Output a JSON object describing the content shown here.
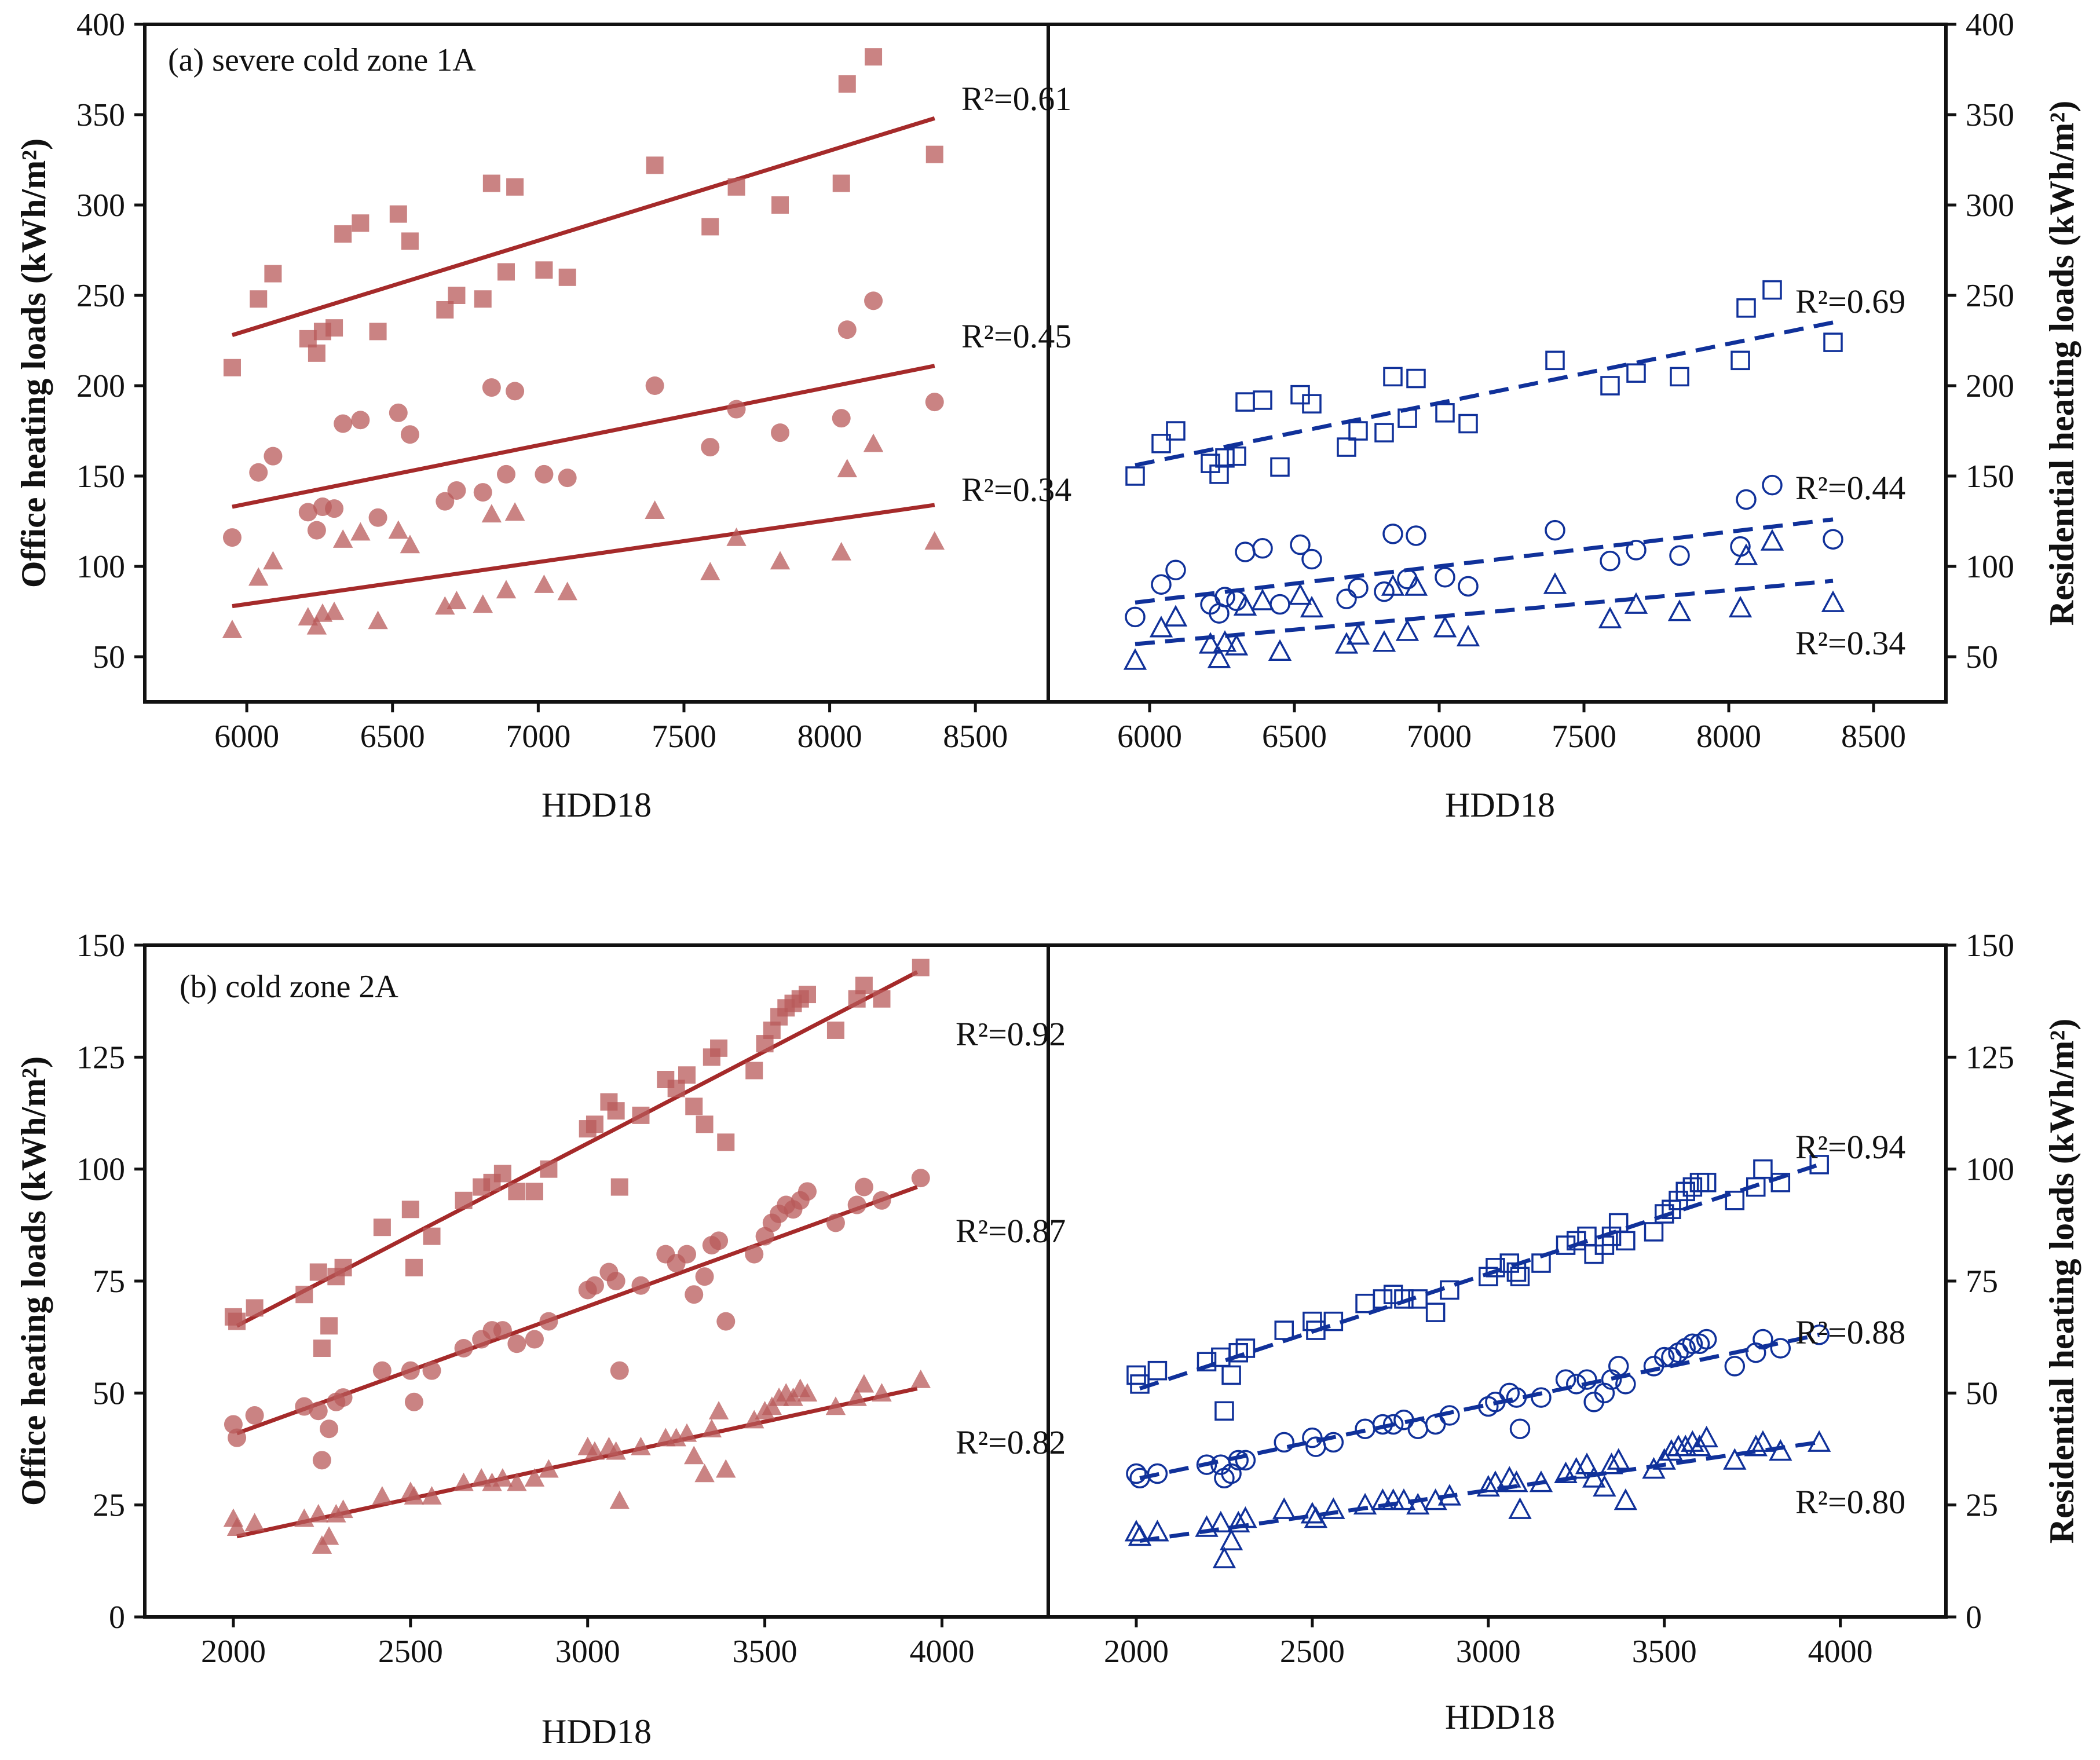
{
  "colors": {
    "office": "#a52a2a",
    "office_marker": "#b85a5a",
    "residential": "#10319a",
    "axis": "#111111"
  },
  "chart_data": [
    {
      "type": "scatter",
      "title": "(a) severe cold zone 1A",
      "xlabel": "HDD18",
      "left_ylabel": "Office heating loads (kWh/m²)",
      "right_ylabel": "Residential heating loads (kWh/m²)",
      "xlim": [
        5650,
        8750
      ],
      "ylim": [
        25,
        400
      ],
      "xticks": [
        6000,
        6500,
        7000,
        7500,
        8000,
        8500
      ],
      "yticks": [
        50,
        100,
        150,
        200,
        250,
        300,
        350,
        400
      ],
      "legend": "none",
      "x": [
        5950,
        6040,
        6090,
        6210,
        6240,
        6260,
        6300,
        6330,
        6390,
        6450,
        6520,
        6560,
        6680,
        6720,
        6810,
        6840,
        6890,
        6920,
        7020,
        7100,
        7400,
        7590,
        7680,
        7830,
        8040,
        8060,
        8150,
        8360
      ],
      "office_series": [
        {
          "name": "squares",
          "marker": "square",
          "fit_r2": "R²=0.61",
          "fit": [
            [
              5950,
              228
            ],
            [
              8360,
              348
            ]
          ],
          "values": [
            210,
            248,
            262,
            226,
            218,
            230,
            232,
            284,
            290,
            230,
            295,
            280,
            242,
            250,
            248,
            312,
            263,
            310,
            264,
            260,
            322,
            288,
            310,
            300,
            312,
            367,
            382,
            328
          ]
        },
        {
          "name": "circles",
          "marker": "circle",
          "fit_r2": "R²=0.45",
          "fit": [
            [
              5950,
              133
            ],
            [
              8360,
              211
            ]
          ],
          "values": [
            116,
            152,
            161,
            130,
            120,
            133,
            132,
            179,
            181,
            127,
            185,
            173,
            136,
            142,
            141,
            199,
            151,
            197,
            151,
            149,
            200,
            166,
            187,
            174,
            182,
            231,
            247,
            191
          ]
        },
        {
          "name": "triangles",
          "marker": "triangle",
          "fit_r2": "R²=0.34",
          "fit": [
            [
              5950,
              78
            ],
            [
              8360,
              134
            ]
          ],
          "values": [
            65,
            94,
            103,
            72,
            67,
            74,
            75,
            115,
            119,
            70,
            120,
            112,
            78,
            81,
            79,
            129,
            87,
            130,
            90,
            86,
            131,
            97,
            116,
            103,
            108,
            154,
            168,
            114
          ]
        }
      ],
      "residential_series": [
        {
          "name": "squares",
          "marker": "square",
          "fit_r2": "R²=0.69",
          "fit": [
            [
              5950,
              156
            ],
            [
              8360,
              235
            ]
          ],
          "values": [
            150,
            168,
            175,
            157,
            151,
            160,
            161,
            191,
            192,
            155,
            195,
            190,
            166,
            175,
            174,
            205,
            182,
            204,
            185,
            179,
            214,
            200,
            207,
            205,
            214,
            243,
            253,
            224
          ]
        },
        {
          "name": "circles",
          "marker": "circle",
          "fit_r2": "R²=0.44",
          "fit": [
            [
              5950,
              80
            ],
            [
              8360,
              126
            ]
          ],
          "values": [
            72,
            90,
            98,
            79,
            74,
            83,
            81,
            108,
            110,
            79,
            112,
            104,
            82,
            88,
            86,
            118,
            93,
            117,
            94,
            89,
            120,
            103,
            109,
            106,
            111,
            137,
            145,
            115
          ]
        },
        {
          "name": "triangles",
          "marker": "triangle",
          "fit_r2": "R²=0.34",
          "fit": [
            [
              5950,
              57
            ],
            [
              8360,
              92
            ]
          ],
          "values": [
            48,
            66,
            72,
            57,
            49,
            58,
            56,
            78,
            81,
            53,
            84,
            77,
            57,
            62,
            58,
            89,
            64,
            89,
            66,
            61,
            90,
            71,
            79,
            75,
            77,
            106,
            114,
            80
          ]
        }
      ]
    },
    {
      "type": "scatter",
      "title": "(b) cold zone 2A",
      "xlabel": "HDD18",
      "left_ylabel": "Office heating loads (kWh/m²)",
      "right_ylabel": "Residential heating loads (kWh/m²)",
      "xlim": [
        1750,
        4300
      ],
      "ylim": [
        0,
        150
      ],
      "xticks": [
        2000,
        2500,
        3000,
        3500,
        4000
      ],
      "yticks": [
        0,
        25,
        50,
        75,
        100,
        125,
        150
      ],
      "legend": "none",
      "x": [
        2000,
        2010,
        2060,
        2200,
        2240,
        2250,
        2270,
        2290,
        2310,
        2420,
        2500,
        2510,
        2560,
        2650,
        2700,
        2730,
        2760,
        2800,
        2850,
        2890,
        3000,
        3020,
        3060,
        3080,
        3090,
        3150,
        3220,
        3250,
        3280,
        3300,
        3330,
        3350,
        3370,
        3390,
        3470,
        3500,
        3520,
        3540,
        3560,
        3580,
        3600,
        3620,
        3700,
        3760,
        3780,
        3830,
        3940
      ],
      "office_series": [
        {
          "name": "squares",
          "marker": "square",
          "fit_r2": "R²=0.92",
          "fit": [
            [
              2010,
              65
            ],
            [
              3930,
              144
            ]
          ],
          "values": [
            67,
            66,
            69,
            72,
            77,
            60,
            65,
            76,
            78,
            87,
            91,
            78,
            85,
            93,
            96,
            97,
            99,
            95,
            95,
            100,
            109,
            110,
            115,
            113,
            96,
            112,
            120,
            118,
            121,
            114,
            110,
            125,
            127,
            106,
            122,
            128,
            131,
            134,
            136,
            137,
            138,
            139,
            131,
            138,
            141,
            138,
            145
          ]
        },
        {
          "name": "circles",
          "marker": "circle",
          "fit_r2": "R²=0.87",
          "fit": [
            [
              2010,
              41
            ],
            [
              3930,
              96
            ]
          ],
          "values": [
            43,
            40,
            45,
            47,
            46,
            35,
            42,
            48,
            49,
            55,
            55,
            48,
            55,
            60,
            62,
            64,
            64,
            61,
            62,
            66,
            73,
            74,
            77,
            75,
            55,
            74,
            81,
            79,
            81,
            72,
            76,
            83,
            84,
            66,
            81,
            85,
            88,
            90,
            92,
            91,
            93,
            95,
            88,
            92,
            96,
            93,
            98
          ]
        },
        {
          "name": "triangles",
          "marker": "triangle",
          "fit_r2": "R²=0.82",
          "fit": [
            [
              2010,
              18
            ],
            [
              3930,
              51
            ]
          ],
          "values": [
            22,
            20,
            21,
            22,
            23,
            16,
            18,
            23,
            24,
            27,
            28,
            27,
            27,
            30,
            31,
            30,
            31,
            30,
            31,
            33,
            38,
            37,
            38,
            37,
            26,
            38,
            40,
            40,
            41,
            36,
            32,
            42,
            46,
            33,
            44,
            46,
            47,
            49,
            50,
            49,
            51,
            50,
            47,
            49,
            52,
            50,
            53
          ]
        }
      ],
      "residential_series": [
        {
          "name": "squares",
          "marker": "square",
          "fit_r2": "R²=0.94",
          "fit": [
            [
              2010,
              51
            ],
            [
              3940,
              101
            ]
          ],
          "values": [
            54,
            52,
            55,
            57,
            58,
            46,
            54,
            59,
            60,
            64,
            66,
            64,
            66,
            70,
            71,
            72,
            71,
            71,
            68,
            73,
            76,
            78,
            79,
            77,
            76,
            79,
            83,
            84,
            85,
            81,
            83,
            85,
            88,
            84,
            86,
            90,
            91,
            93,
            95,
            96,
            97,
            97,
            93,
            96,
            100,
            97,
            101
          ]
        },
        {
          "name": "circles",
          "marker": "circle",
          "fit_r2": "R²=0.88",
          "fit": [
            [
              2010,
              31
            ],
            [
              3940,
              63
            ]
          ],
          "values": [
            32,
            31,
            32,
            34,
            34,
            31,
            32,
            35,
            35,
            39,
            40,
            38,
            39,
            42,
            43,
            43,
            44,
            42,
            43,
            45,
            47,
            48,
            50,
            49,
            42,
            49,
            53,
            52,
            53,
            48,
            50,
            53,
            56,
            52,
            56,
            58,
            58,
            59,
            60,
            61,
            61,
            62,
            56,
            59,
            62,
            60,
            63
          ]
        },
        {
          "name": "triangles",
          "marker": "triangle",
          "fit_r2": "R²=0.80",
          "fit": [
            [
              2010,
              17
            ],
            [
              3940,
              39
            ]
          ],
          "values": [
            19,
            18,
            19,
            20,
            21,
            13,
            17,
            21,
            22,
            24,
            23,
            22,
            24,
            25,
            26,
            26,
            26,
            25,
            26,
            27,
            29,
            30,
            31,
            30,
            24,
            30,
            32,
            33,
            34,
            31,
            29,
            34,
            35,
            26,
            33,
            35,
            37,
            38,
            38,
            39,
            38,
            40,
            35,
            38,
            39,
            37,
            39
          ]
        }
      ]
    }
  ]
}
